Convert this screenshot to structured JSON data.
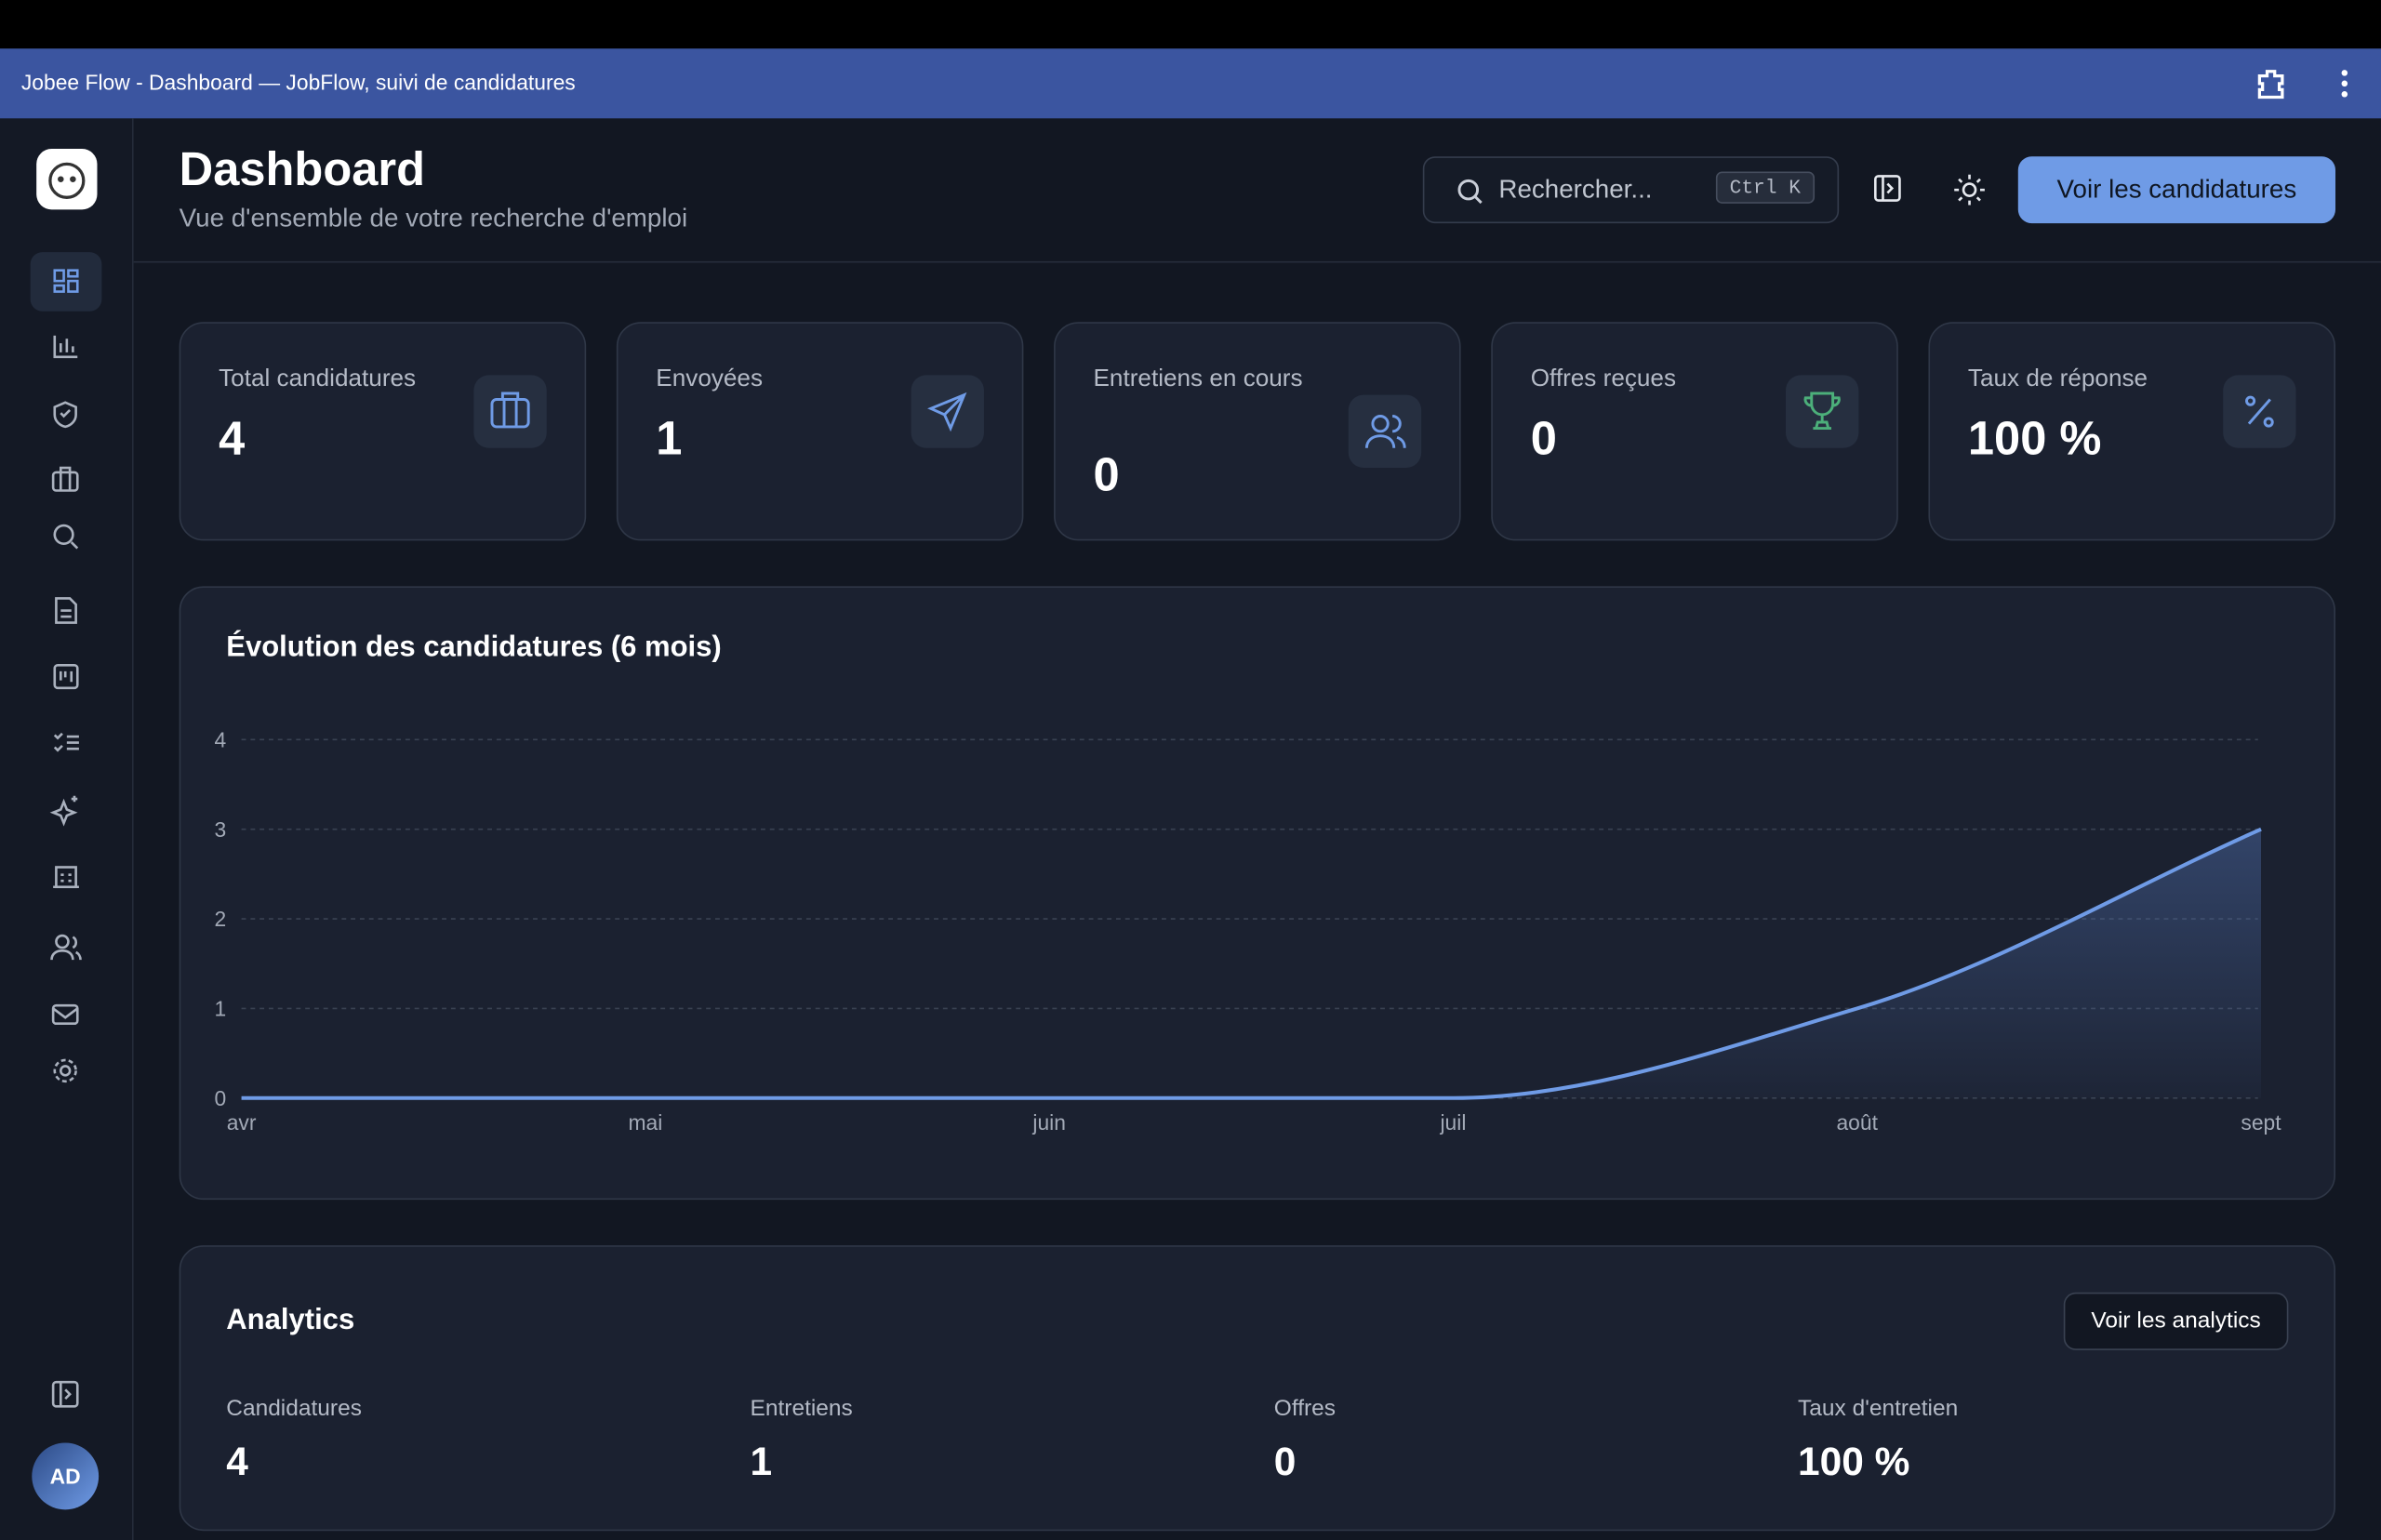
{
  "window_title": "Jobee Flow - Dashboard — JobFlow, suivi de candidatures",
  "header": {
    "title": "Dashboard",
    "subtitle": "Vue d'ensemble de votre recherche d'emploi",
    "search_placeholder": "Rechercher...",
    "shortcut": "Ctrl K",
    "button": "Voir les candidatures"
  },
  "stats": [
    {
      "label": "Total candidatures",
      "value": "4"
    },
    {
      "label": "Envoyées",
      "value": "1"
    },
    {
      "label": "Entretiens en cours",
      "value": "0"
    },
    {
      "label": "Offres reçues",
      "value": "0"
    },
    {
      "label": "Taux de réponse",
      "value": "100 %"
    }
  ],
  "chart_data": {
    "type": "line",
    "title": "Évolution des candidatures (6 mois)",
    "categories": [
      "avr",
      "mai",
      "juin",
      "juil",
      "août",
      "sept"
    ],
    "values": [
      0,
      0,
      0,
      0,
      1,
      3
    ],
    "color": "#6f9be6",
    "ylim": [
      0,
      4
    ],
    "yticks": [
      0,
      1,
      2,
      3,
      4
    ],
    "grid": true
  },
  "analytics": {
    "title": "Analytics",
    "button": "Voir les analytics",
    "items": [
      {
        "label": "Candidatures",
        "value": "4"
      },
      {
        "label": "Entretiens",
        "value": "1"
      },
      {
        "label": "Offres",
        "value": "0"
      },
      {
        "label": "Taux d'entretien",
        "value": "100 %"
      }
    ]
  },
  "user": {
    "initials": "AD"
  }
}
